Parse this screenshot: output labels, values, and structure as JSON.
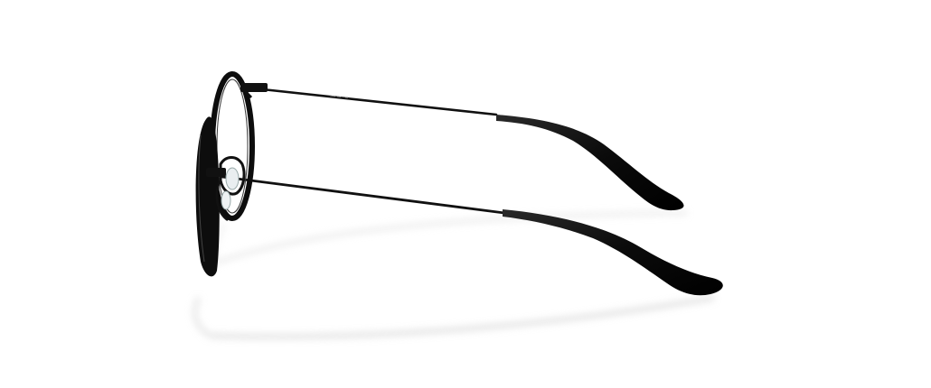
{
  "image": {
    "subject": "eyeglasses-side-view",
    "background_color": "#ffffff",
    "frame_color": "#0d0d0d",
    "shadow_color": "#d9d9d9"
  }
}
